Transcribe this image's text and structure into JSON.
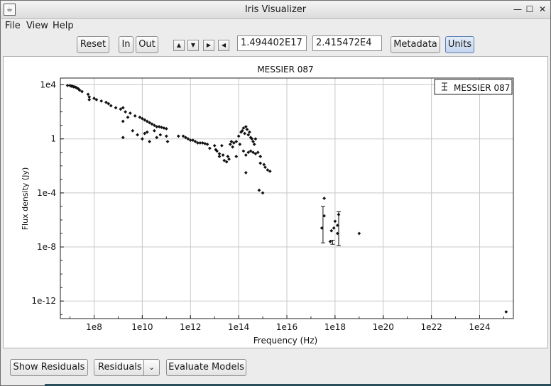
{
  "window": {
    "title": "Iris Visualizer",
    "minimize_glyph": "—",
    "maximize_glyph": "☐",
    "close_glyph": "✕"
  },
  "menubar": {
    "items": [
      "File",
      "View",
      "Help"
    ]
  },
  "toolbar": {
    "reset_label": "Reset",
    "zoom_in_label": "In",
    "zoom_out_label": "Out",
    "pan_up_glyph": "▲",
    "pan_down_glyph": "▼",
    "pan_right_glyph": "▶",
    "pan_left_glyph": "◀",
    "x_coordinate": "1.494402E17",
    "y_coordinate": "2.415472E4",
    "metadata_label": "Metadata",
    "units_label": "Units"
  },
  "bottombar": {
    "show_residuals_label": "Show Residuals",
    "residuals_selected": "Residuals",
    "evaluate_models_label": "Evaluate Models"
  },
  "colors": {
    "points": "#111111",
    "grid": "#c8c8c8"
  },
  "chart_data": {
    "type": "scatter",
    "title": "MESSIER 087",
    "xlabel": "Frequency (Hz)",
    "ylabel": "Flux density (Jy)",
    "xscale": "log",
    "yscale": "log",
    "xlim_log10": [
      6.6,
      25.4
    ],
    "ylim_log10": [
      -13.3,
      4.5
    ],
    "xticks_log10": [
      8,
      10,
      12,
      14,
      16,
      18,
      20,
      22,
      24
    ],
    "xtick_labels": [
      "1e8",
      "1e10",
      "1e12",
      "1e14",
      "1e16",
      "1e18",
      "1e20",
      "1e22",
      "1e24"
    ],
    "yticks_log10": [
      4,
      0,
      -4,
      -8,
      -12
    ],
    "ytick_labels": [
      "1e4",
      "1",
      "1e-4",
      "1e-8",
      "1e-12"
    ],
    "grid": true,
    "legend": {
      "position": "top-right",
      "entries": [
        "MESSIER 087"
      ]
    },
    "series": [
      {
        "name": "MESSIER 087",
        "points_log10": [
          [
            6.9,
            3.95
          ],
          [
            7.0,
            3.95
          ],
          [
            7.05,
            3.9
          ],
          [
            7.1,
            3.9
          ],
          [
            7.15,
            3.85
          ],
          [
            7.2,
            3.85
          ],
          [
            7.25,
            3.8
          ],
          [
            7.3,
            3.75
          ],
          [
            7.35,
            3.7
          ],
          [
            7.4,
            3.6
          ],
          [
            7.5,
            3.5
          ],
          [
            7.75,
            3.3
          ],
          [
            7.8,
            3.1
          ],
          [
            7.8,
            2.9
          ],
          [
            8.0,
            3.0
          ],
          [
            8.1,
            2.9
          ],
          [
            8.3,
            2.8
          ],
          [
            8.5,
            2.7
          ],
          [
            8.6,
            2.6
          ],
          [
            8.7,
            2.45
          ],
          [
            8.9,
            2.3
          ],
          [
            9.1,
            2.2
          ],
          [
            9.3,
            2.0
          ],
          [
            9.4,
            1.6
          ],
          [
            9.2,
            2.3
          ],
          [
            9.2,
            1.3
          ],
          [
            9.5,
            1.9
          ],
          [
            9.7,
            1.7
          ],
          [
            9.9,
            1.6
          ],
          [
            10.0,
            1.5
          ],
          [
            10.1,
            1.4
          ],
          [
            10.2,
            1.3
          ],
          [
            10.3,
            1.2
          ],
          [
            10.4,
            1.1
          ],
          [
            10.5,
            1.0
          ],
          [
            10.6,
            0.9
          ],
          [
            10.7,
            0.9
          ],
          [
            10.8,
            0.85
          ],
          [
            10.9,
            0.8
          ],
          [
            11.0,
            0.75
          ],
          [
            9.2,
            0.1
          ],
          [
            9.6,
            0.6
          ],
          [
            9.8,
            0.3
          ],
          [
            10.0,
            0.0
          ],
          [
            10.1,
            0.4
          ],
          [
            10.2,
            0.5
          ],
          [
            10.3,
            -0.2
          ],
          [
            10.5,
            0.6
          ],
          [
            10.6,
            0.1
          ],
          [
            10.75,
            0.3
          ],
          [
            11.0,
            0.2
          ],
          [
            11.05,
            -0.2
          ],
          [
            11.5,
            0.2
          ],
          [
            11.7,
            0.2
          ],
          [
            11.8,
            0.1
          ],
          [
            11.9,
            0.0
          ],
          [
            12.0,
            -0.1
          ],
          [
            12.1,
            -0.1
          ],
          [
            12.2,
            -0.2
          ],
          [
            12.3,
            -0.3
          ],
          [
            12.4,
            -0.3
          ],
          [
            12.5,
            -0.3
          ],
          [
            12.6,
            -0.35
          ],
          [
            12.7,
            -0.4
          ],
          [
            12.8,
            -0.7
          ],
          [
            13.0,
            -0.5
          ],
          [
            13.05,
            -0.8
          ],
          [
            13.1,
            -0.9
          ],
          [
            13.2,
            -1.1
          ],
          [
            13.2,
            -1.3
          ],
          [
            13.3,
            -0.5
          ],
          [
            13.35,
            -1.2
          ],
          [
            13.4,
            -1.6
          ],
          [
            13.5,
            -1.7
          ],
          [
            13.55,
            -1.3
          ],
          [
            13.6,
            -1.5
          ],
          [
            13.65,
            -0.4
          ],
          [
            13.7,
            -0.2
          ],
          [
            13.75,
            -0.6
          ],
          [
            13.8,
            -0.3
          ],
          [
            13.9,
            -0.2
          ],
          [
            13.9,
            -1.3
          ],
          [
            14.0,
            0.2
          ],
          [
            14.05,
            -0.4
          ],
          [
            14.1,
            0.5
          ],
          [
            14.15,
            0.6
          ],
          [
            14.2,
            0.8
          ],
          [
            14.25,
            0.4
          ],
          [
            14.3,
            0.9
          ],
          [
            14.35,
            0.7
          ],
          [
            14.4,
            0.3
          ],
          [
            14.45,
            0.5
          ],
          [
            14.5,
            0.1
          ],
          [
            14.55,
            0.0
          ],
          [
            14.6,
            -0.2
          ],
          [
            14.65,
            -0.4
          ],
          [
            14.7,
            0.0
          ],
          [
            14.2,
            -0.9
          ],
          [
            14.3,
            -1.2
          ],
          [
            14.4,
            -1.0
          ],
          [
            14.5,
            -0.9
          ],
          [
            14.6,
            -1.0
          ],
          [
            14.7,
            -1.1
          ],
          [
            14.8,
            -1.0
          ],
          [
            14.9,
            -1.3
          ],
          [
            14.3,
            -2.5
          ],
          [
            14.9,
            -1.8
          ],
          [
            15.05,
            -1.9
          ],
          [
            15.1,
            -2.1
          ],
          [
            15.2,
            -2.3
          ],
          [
            15.3,
            -2.4
          ],
          [
            14.85,
            -3.8
          ],
          [
            15.0,
            -4.0
          ],
          [
            17.45,
            -6.6
          ],
          [
            17.55,
            -4.4
          ],
          [
            17.55,
            -5.7
          ],
          [
            17.8,
            -7.6
          ],
          [
            17.85,
            -6.8
          ],
          [
            17.95,
            -6.6
          ],
          [
            18.0,
            -6.1
          ],
          [
            18.1,
            -6.4
          ],
          [
            18.1,
            -7.0
          ],
          [
            18.15,
            -5.6
          ],
          [
            19.0,
            -7.0
          ],
          [
            25.1,
            -12.8
          ]
        ],
        "error_bars_log10": [
          [
            17.5,
            -5.0,
            -7.7
          ],
          [
            17.9,
            -7.5,
            -7.8
          ],
          [
            18.15,
            -5.4,
            -7.9
          ]
        ]
      }
    ]
  }
}
